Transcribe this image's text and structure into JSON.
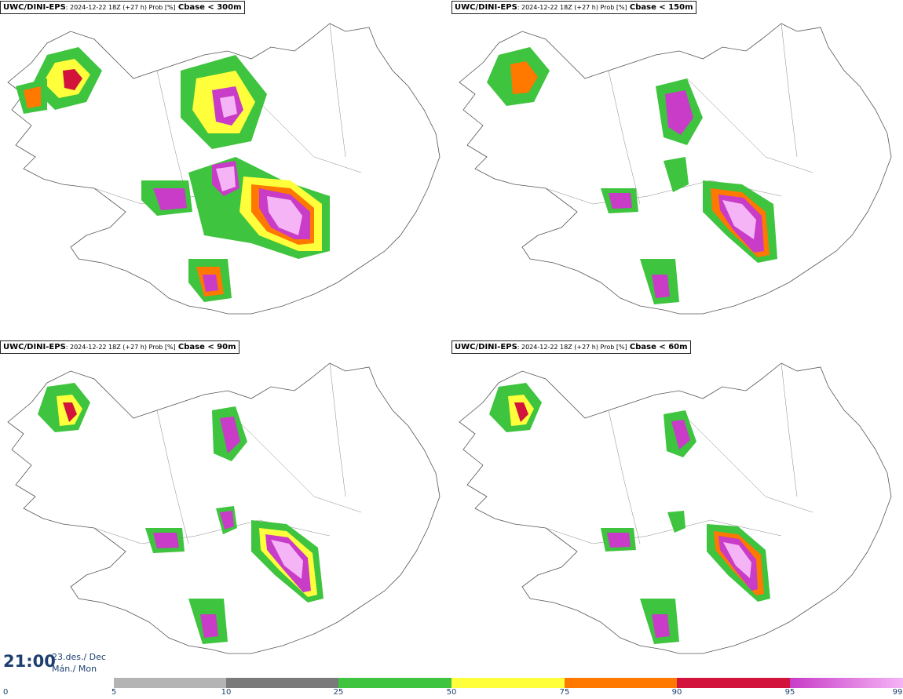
{
  "panels": [
    {
      "model": "UWC/DINI-EPS",
      "meta": ": 2024-12-22 18Z (+27 h) Prob [%]",
      "param": "Cbase < 300m"
    },
    {
      "model": "UWC/DINI-EPS",
      "meta": ": 2024-12-22 18Z (+27 h) Prob [%]",
      "param": "Cbase < 150m"
    },
    {
      "model": "UWC/DINI-EPS",
      "meta": ": 2024-12-22 18Z (+27 h) Prob [%]",
      "param": "Cbase < 90m"
    },
    {
      "model": "UWC/DINI-EPS",
      "meta": ": 2024-12-22 18Z (+27 h) Prob [%]",
      "param": "Cbase < 60m"
    }
  ],
  "valid_time": {
    "time": "21:00",
    "date": "23.des./ Dec",
    "weekday": "Mán./ Mon"
  },
  "legend": {
    "ticks": [
      "0",
      "5",
      "10",
      "25",
      "50",
      "75",
      "90",
      "95",
      "99"
    ],
    "colors": [
      "#b4b4b4",
      "#7a7a7a",
      "#3ec43e",
      "#ffff3c",
      "#ff7800",
      "#d2143c",
      "#c83cc8",
      "#f5b4f5"
    ]
  },
  "colors": {
    "outline": "#555555",
    "gray_light": "#b4b4b4",
    "gray_dark": "#7a7a7a",
    "green": "#3ec43e",
    "yellow": "#ffff3c",
    "orange": "#ff7800",
    "red": "#d2143c",
    "magenta": "#c83cc8",
    "pink": "#f5b4f5",
    "text": "#1c3f6e"
  }
}
